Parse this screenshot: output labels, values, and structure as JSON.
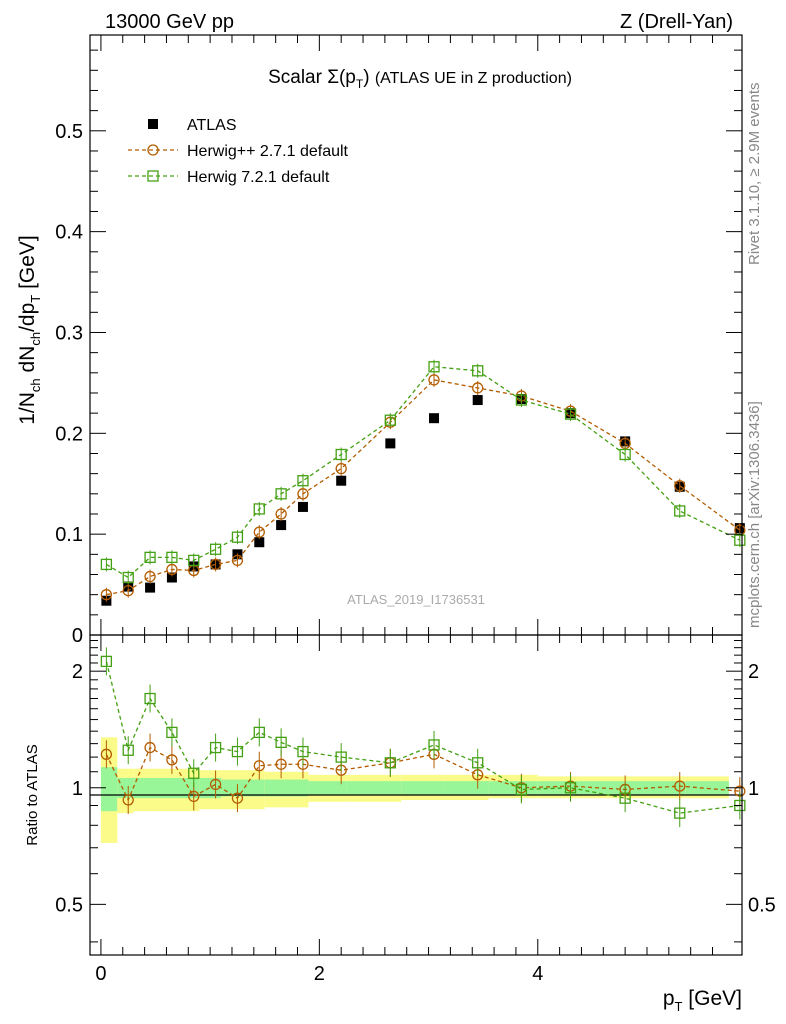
{
  "header": {
    "energy_label": "13000 GeV pp",
    "process_label": "Z (Drell-Yan)"
  },
  "side_labels": {
    "rivet": "Rivet 3.1.10, ≥ 2.9M events",
    "source": "mcplots.cern.ch [arXiv:1306.3436]"
  },
  "watermark": "ATLAS_2019_I1736531",
  "chart_data": [
    {
      "type": "scatter",
      "panel": "main",
      "title": "Scalar Σ(pT) (ATLAS UE in Z production)",
      "xlabel": "pT [GeV]",
      "ylabel": "1/Nch dNch/dpT [GeV]",
      "xlim": [
        -0.1,
        5.87
      ],
      "ylim": [
        0,
        0.595
      ],
      "yticks": [
        0,
        0.1,
        0.2,
        0.3,
        0.4,
        0.5
      ],
      "ytick_labels": [
        "0",
        "0.1",
        "0.2",
        "0.3",
        "0.4",
        "0.5"
      ],
      "legend_position": "top-left",
      "x": [
        0.05,
        0.25,
        0.45,
        0.65,
        0.85,
        1.05,
        1.25,
        1.45,
        1.65,
        1.85,
        2.2,
        2.65,
        3.05,
        3.45,
        3.85,
        4.3,
        4.8,
        5.3,
        5.85
      ],
      "series": [
        {
          "name": "ATLAS",
          "marker": "filled-square",
          "color": "#000000",
          "values": [
            0.034,
            0.048,
            0.047,
            0.057,
            0.068,
            0.07,
            0.08,
            0.092,
            0.109,
            0.127,
            0.153,
            0.19,
            0.215,
            0.233,
            0.234,
            0.22,
            0.192,
            0.147,
            0.106
          ]
        },
        {
          "name": "Herwig++ 2.7.1 default",
          "marker": "open-circle",
          "color": "#b35c00",
          "values": [
            0.04,
            0.044,
            0.058,
            0.065,
            0.064,
            0.07,
            0.074,
            0.102,
            0.12,
            0.14,
            0.165,
            0.211,
            0.253,
            0.245,
            0.237,
            0.222,
            0.19,
            0.148,
            0.104
          ]
        },
        {
          "name": "Herwig 7.2.1 default",
          "marker": "open-square",
          "color": "#44a013",
          "values": [
            0.07,
            0.057,
            0.077,
            0.077,
            0.074,
            0.085,
            0.097,
            0.125,
            0.14,
            0.153,
            0.179,
            0.213,
            0.266,
            0.262,
            0.233,
            0.219,
            0.179,
            0.123,
            0.094
          ]
        }
      ]
    },
    {
      "type": "scatter",
      "panel": "ratio",
      "xlabel": "pT [GeV]",
      "ylabel": "Ratio to ATLAS",
      "xlim": [
        -0.1,
        5.87
      ],
      "ylim": [
        0.37,
        2.48
      ],
      "yticks": [
        0.5,
        1,
        2
      ],
      "ytick_labels": [
        "0.5",
        "1",
        "2"
      ],
      "xticks": [
        0,
        2,
        4
      ],
      "xtick_labels": [
        "0",
        "2",
        "4"
      ],
      "x": [
        0.05,
        0.25,
        0.45,
        0.65,
        0.85,
        1.05,
        1.25,
        1.45,
        1.65,
        1.85,
        2.2,
        2.65,
        3.05,
        3.45,
        3.85,
        4.3,
        4.8,
        5.3,
        5.85
      ],
      "series": [
        {
          "name": "Herwig++ 2.7.1 default",
          "color": "#b35c00",
          "values": [
            1.22,
            0.93,
            1.27,
            1.18,
            0.95,
            1.02,
            0.94,
            1.14,
            1.15,
            1.15,
            1.11,
            1.16,
            1.22,
            1.08,
            1.0,
            1.01,
            0.99,
            1.01,
            0.98
          ]
        },
        {
          "name": "Herwig 7.2.1 default",
          "color": "#44a013",
          "values": [
            2.12,
            1.25,
            1.7,
            1.39,
            1.09,
            1.27,
            1.24,
            1.39,
            1.31,
            1.24,
            1.2,
            1.16,
            1.29,
            1.16,
            0.99,
            1.0,
            0.94,
            0.86,
            0.9
          ]
        }
      ],
      "bands": {
        "x_edges": [
          0.0,
          0.15,
          0.3,
          0.9,
          1.1,
          1.5,
          1.9,
          2.25,
          2.75,
          3.15,
          3.55,
          4.0,
          4.8,
          5.35,
          5.75
        ],
        "inner_lo": [
          0.87,
          0.94,
          0.94,
          0.94,
          0.95,
          0.95,
          0.96,
          0.96,
          0.96,
          0.96,
          0.96,
          0.96,
          0.96,
          0.96
        ],
        "inner_hi": [
          1.13,
          1.06,
          1.06,
          1.06,
          1.05,
          1.05,
          1.04,
          1.04,
          1.04,
          1.04,
          1.04,
          1.04,
          1.04,
          1.04
        ],
        "outer_lo": [
          0.72,
          0.86,
          0.87,
          0.88,
          0.88,
          0.89,
          0.92,
          0.92,
          0.93,
          0.93,
          0.94,
          0.94,
          0.94,
          0.94
        ],
        "outer_hi": [
          1.35,
          1.12,
          1.12,
          1.11,
          1.11,
          1.1,
          1.08,
          1.08,
          1.08,
          1.08,
          1.08,
          1.07,
          1.07,
          1.07
        ],
        "inner_color": "#98f598",
        "outer_color": "#fbfb8a"
      }
    }
  ]
}
